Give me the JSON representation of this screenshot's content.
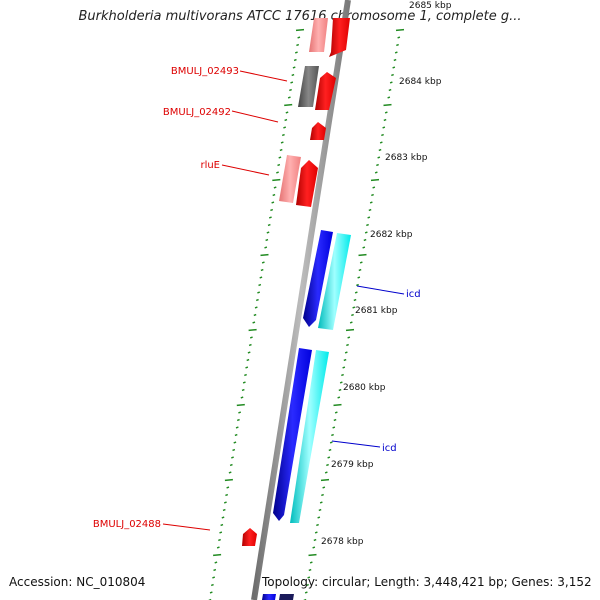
{
  "title": "Burkholderia multivorans ATCC 17616 chromosome 1, complete g...",
  "footer": {
    "accession": "Accession: NC_010804",
    "stats": "Topology: circular; Length: 3,448,421 bp; Genes: 3,152"
  },
  "ticks": [
    "2685 kbp",
    "2684 kbp",
    "2683 kbp",
    "2682 kbp",
    "2681 kbp",
    "2680 kbp",
    "2679 kbp",
    "2678 kbp"
  ],
  "gene_labels": [
    "BMULJ_02493",
    "BMULJ_02492",
    "rluE",
    "icd",
    "icd",
    "BMULJ_02488"
  ],
  "colors": {
    "backbone": "#8c8c8c",
    "tick_marks": "#228b22",
    "forward_cds": "#ff0000",
    "forward_light": "#f08080",
    "reverse_cds": "#0000ff",
    "reverse_light": "#00ffff",
    "pseudo_gray": "#666666",
    "label_red": "#dd0000",
    "label_blue": "#0000cc"
  }
}
